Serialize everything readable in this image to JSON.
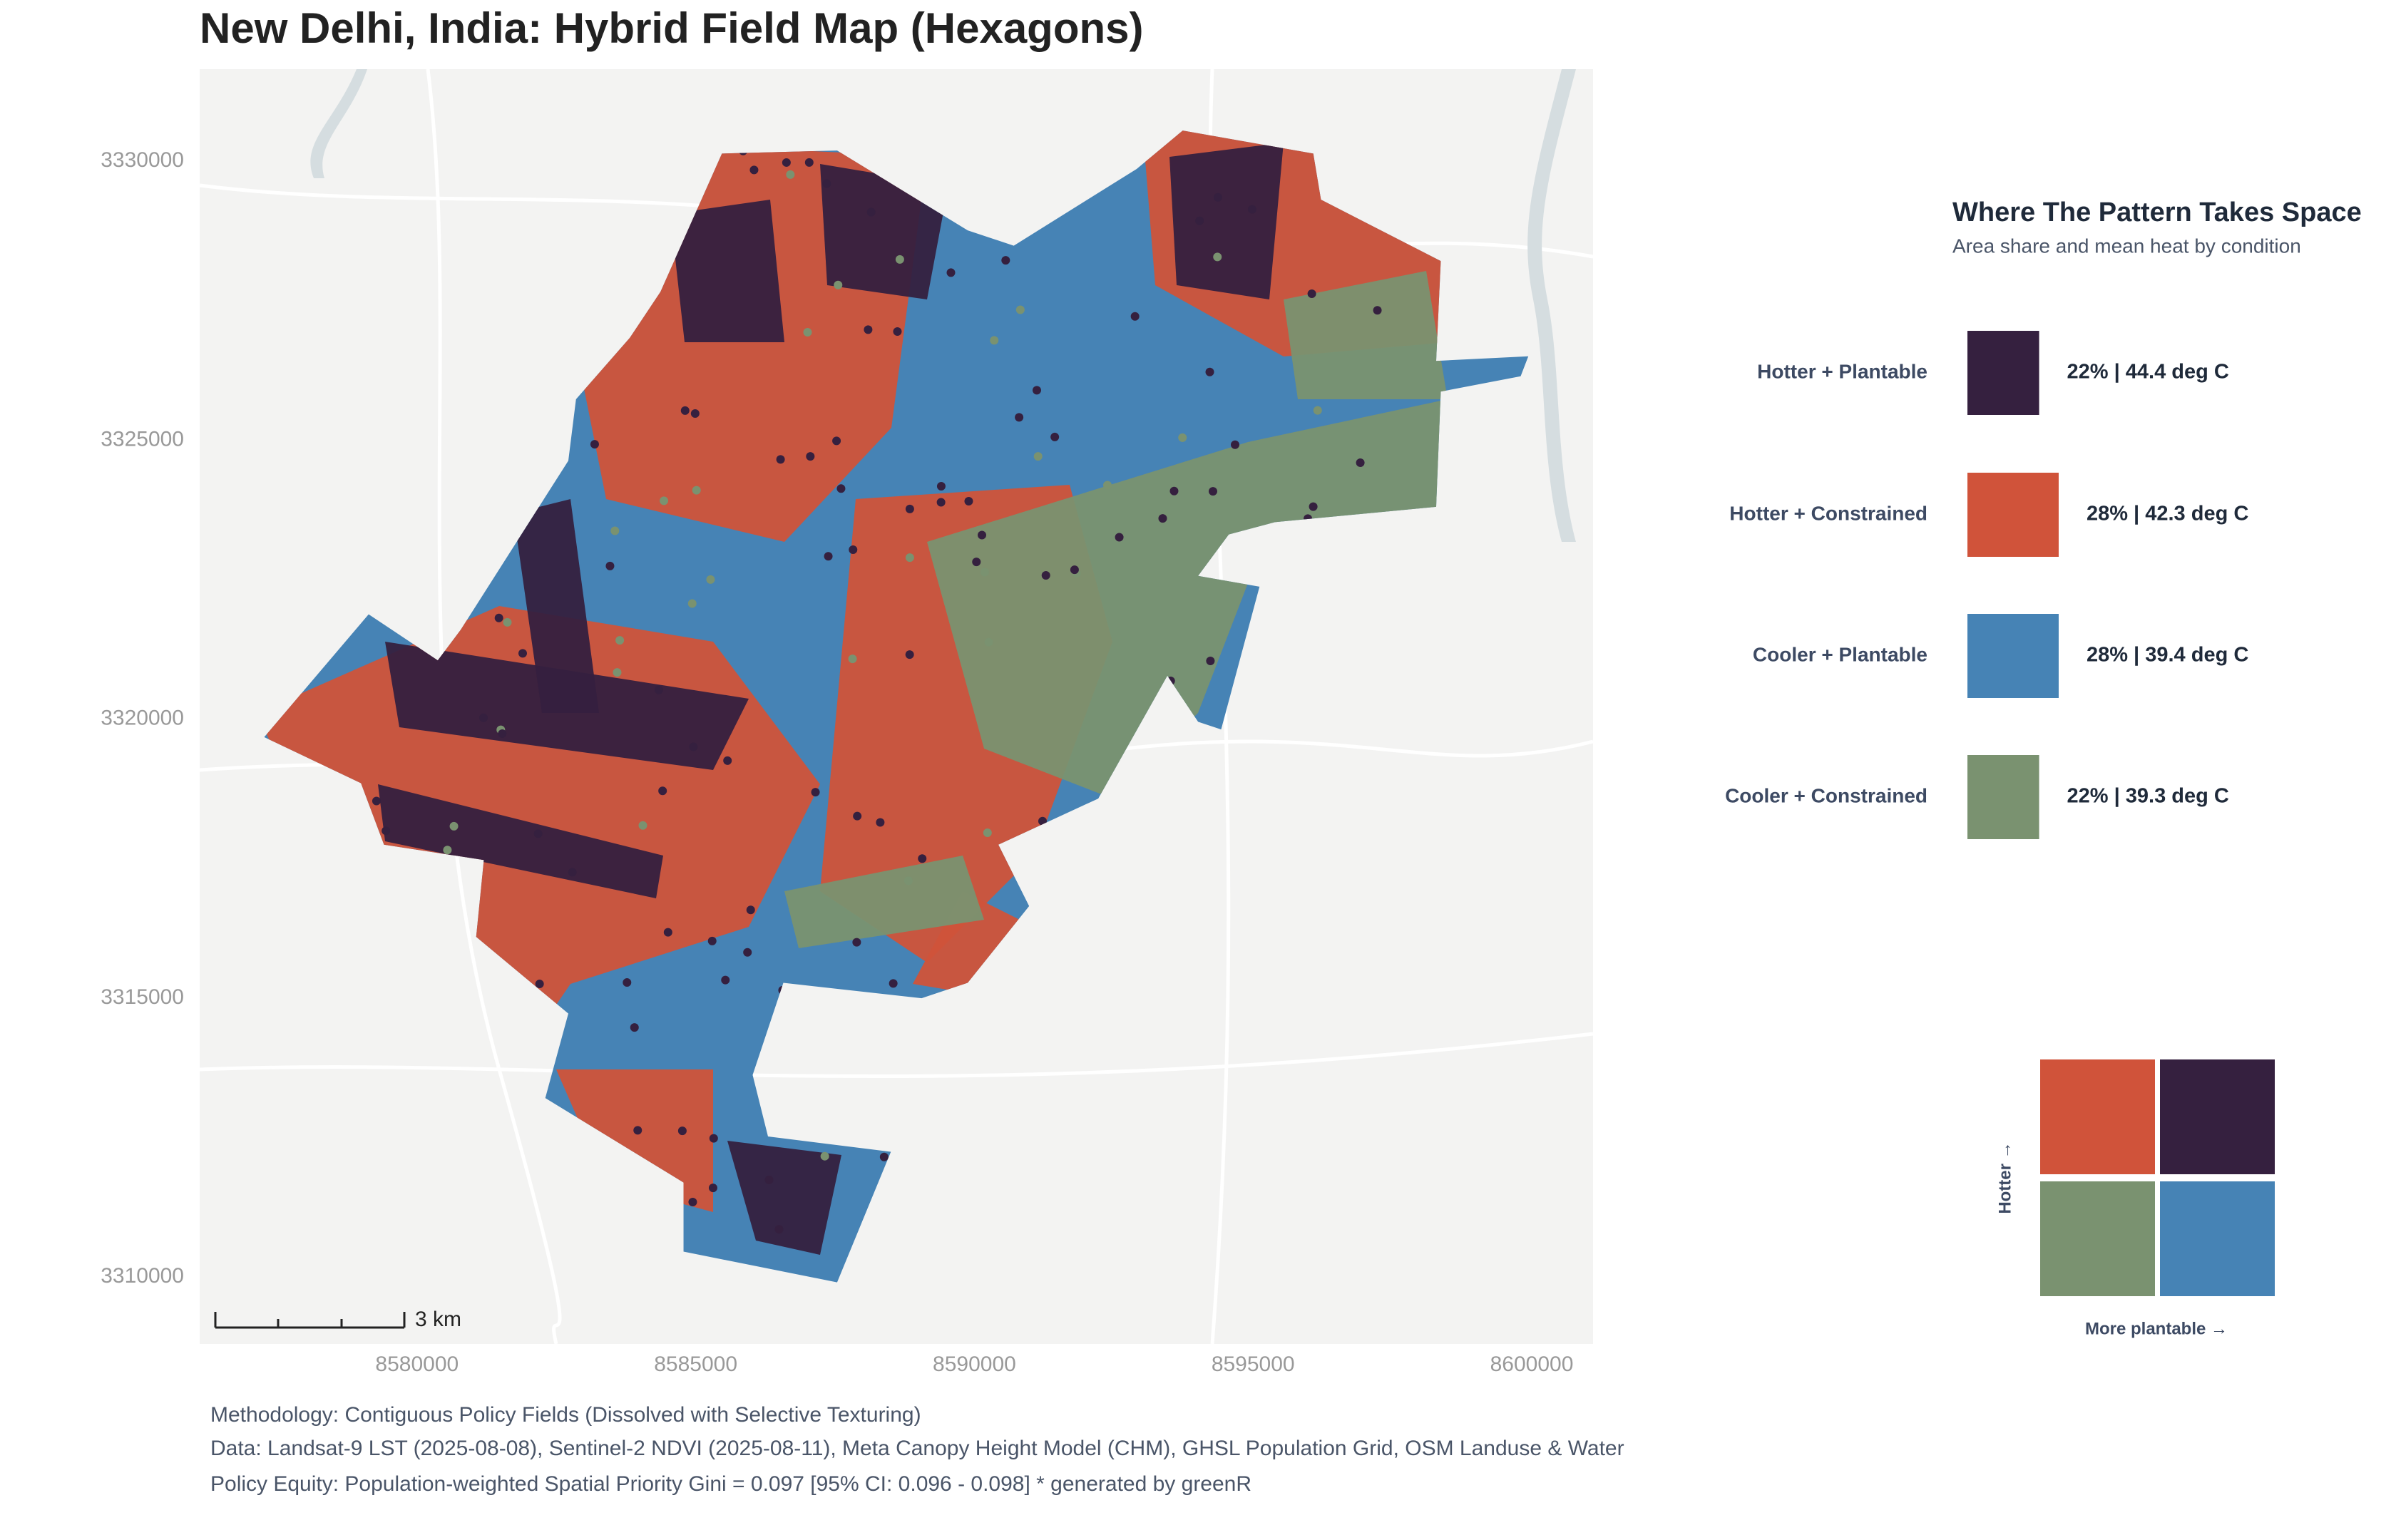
{
  "chart_data": {
    "type": "map",
    "title": "New Delhi, India: Hybrid Field Map (Hexagons)",
    "xlim": [
      8576100,
      8601100
    ],
    "ylim": [
      3308800,
      3331650
    ],
    "xticks": [
      8580000,
      8585000,
      8590000,
      8595000,
      8600000
    ],
    "yticks": [
      3310000,
      3315000,
      3320000,
      3325000,
      3330000
    ],
    "scale_bar_label": "3 km",
    "legend": {
      "title": "Where The Pattern Takes Space",
      "subtitle": "Area share and mean heat by condition",
      "items": [
        {
          "name": "Hotter + Plantable",
          "color": "#35203f",
          "share": 22,
          "value_label": "22% | 44.4 deg C"
        },
        {
          "name": "Hotter + Constrained",
          "color": "#d0533a",
          "share": 28,
          "value_label": "28% | 42.3 deg C"
        },
        {
          "name": "Cooler + Plantable",
          "color": "#4683b5",
          "share": 28,
          "value_label": "28% | 39.4 deg C"
        },
        {
          "name": "Cooler + Constrained",
          "color": "#7a9270",
          "share": 22,
          "value_label": "22% | 39.3 deg C"
        }
      ]
    },
    "key": {
      "y_label": "Hotter →",
      "x_label": "More plantable →"
    },
    "captions": [
      "Methodology: Contiguous Policy Fields (Dissolved with Selective Texturing)",
      "Data: Landsat-9 LST (2025-08-08), Sentinel-2 NDVI (2025-08-11), Meta Canopy Height Model (CHM), GHSL Population Grid, OSM Landuse & Water",
      "Policy Equity: Population-weighted Spatial Priority Gini = 0.097 [95% CI: 0.096 - 0.098] * generated by greenR"
    ]
  }
}
